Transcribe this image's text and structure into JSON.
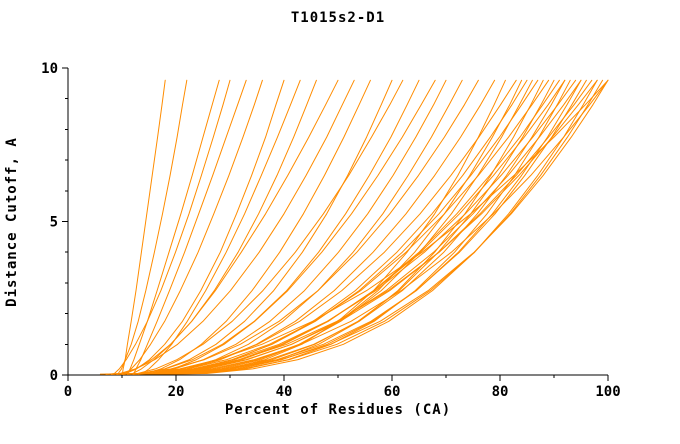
{
  "chart_data": {
    "type": "line",
    "title": "T1015s2-D1",
    "xlabel": "Percent of Residues (CA)",
    "ylabel": "Distance Cutoff, A",
    "xlim": [
      0,
      100
    ],
    "ylim": [
      0,
      10
    ],
    "x_ticks": [
      0,
      20,
      40,
      60,
      80,
      100
    ],
    "y_ticks": [
      0,
      5,
      10
    ],
    "x_minor_step": 10,
    "y_minor_step": 1,
    "grid": false,
    "legend": false,
    "line_color": "#ff8c00",
    "axis_color": "#000000",
    "background": "#ffffff",
    "y_samples": [
      0.03,
      0.05,
      0.2,
      0.5,
      1,
      1.75,
      2.75,
      4,
      5.25,
      6.5,
      7.75,
      8.8,
      9.6
    ],
    "series": [
      [
        10,
        10.1,
        10.2,
        10.6,
        11.0,
        11.7,
        12.6,
        13.6,
        14.6,
        15.6,
        16.6,
        17.4,
        18.0
      ],
      [
        9,
        9.3,
        9.9,
        10.6,
        11.7,
        13.0,
        14.4,
        16.0,
        17.5,
        18.9,
        20.2,
        21.2,
        22.0
      ],
      [
        11,
        11.1,
        11.5,
        12.2,
        13.2,
        14.7,
        16.5,
        18.7,
        20.9,
        23.0,
        25.0,
        26.7,
        28.0
      ],
      [
        8,
        8.6,
        9.5,
        10.8,
        12.5,
        14.7,
        17.2,
        19.9,
        22.4,
        24.7,
        26.9,
        28.7,
        30.0
      ],
      [
        12,
        12.2,
        12.6,
        13.5,
        14.7,
        16.5,
        18.8,
        21.6,
        24.2,
        26.8,
        29.3,
        31.4,
        33.0
      ],
      [
        10,
        10.7,
        11.7,
        13.3,
        15.3,
        17.9,
        20.8,
        24.1,
        27.0,
        29.8,
        32.4,
        34.5,
        36.0
      ],
      [
        9,
        10.7,
        12.7,
        15.1,
        17.9,
        21.2,
        24.6,
        28.2,
        31.2,
        34.0,
        36.6,
        38.5,
        40.0
      ],
      [
        13,
        13.8,
        15.0,
        16.8,
        19.2,
        22.1,
        25.5,
        29.3,
        32.7,
        35.8,
        38.8,
        41.2,
        43.0
      ],
      [
        8,
        10.1,
        12.5,
        15.5,
        19.0,
        22.9,
        27.1,
        31.5,
        35.3,
        38.7,
        41.8,
        44.2,
        46.0
      ],
      [
        11,
        12.0,
        13.6,
        15.9,
        19.0,
        22.9,
        27.3,
        32.1,
        36.6,
        40.7,
        44.6,
        47.7,
        50.0
      ],
      [
        7,
        9.6,
        12.5,
        16.1,
        20.3,
        25.0,
        30.1,
        35.4,
        40.0,
        44.1,
        47.9,
        50.8,
        53.0
      ],
      [
        12,
        14.4,
        17.2,
        20.7,
        24.7,
        29.3,
        34.1,
        39.2,
        43.6,
        47.5,
        51.1,
        53.9,
        56.0
      ],
      [
        9,
        13.8,
        17.9,
        22.5,
        27.4,
        32.7,
        38.1,
        43.4,
        47.9,
        51.8,
        55.3,
        58.0,
        60.0
      ],
      [
        10,
        12.9,
        16.2,
        20.2,
        25.0,
        30.4,
        36.1,
        42.1,
        47.3,
        52.0,
        56.2,
        59.6,
        62.0
      ],
      [
        8,
        13.3,
        18.0,
        23.1,
        28.6,
        34.5,
        40.5,
        46.4,
        51.4,
        55.8,
        59.8,
        62.8,
        65.0
      ],
      [
        13,
        16.1,
        19.5,
        23.8,
        28.9,
        34.6,
        40.7,
        47.0,
        52.5,
        57.4,
        61.9,
        65.4,
        68.0
      ],
      [
        9,
        14.7,
        19.7,
        25.1,
        31.1,
        37.4,
        43.8,
        50.1,
        55.5,
        60.2,
        64.4,
        67.7,
        70.0
      ],
      [
        11,
        16.8,
        21.9,
        27.4,
        33.4,
        39.8,
        46.3,
        52.8,
        58.3,
        63.0,
        67.3,
        70.6,
        73.0
      ],
      [
        7,
        13.5,
        19.1,
        25.3,
        31.9,
        39.1,
        46.3,
        53.5,
        59.6,
        64.9,
        69.7,
        73.4,
        76.0
      ],
      [
        10,
        16.5,
        22.1,
        28.3,
        34.9,
        42.1,
        49.3,
        56.5,
        62.6,
        67.9,
        72.7,
        76.4,
        79.0
      ],
      [
        12,
        23.0,
        29.8,
        36.5,
        43.3,
        50.0,
        56.6,
        62.8,
        67.9,
        72.2,
        76.0,
        78.9,
        81.0
      ],
      [
        8,
        15.0,
        21.1,
        27.8,
        35.1,
        42.9,
        50.7,
        58.6,
        65.2,
        70.9,
        76.1,
        80.1,
        83.0
      ],
      [
        9,
        20.9,
        28.3,
        35.7,
        43.0,
        50.3,
        57.4,
        64.2,
        69.7,
        74.4,
        78.6,
        81.8,
        84.0
      ],
      [
        11,
        17.9,
        24.0,
        30.6,
        37.7,
        45.4,
        53.2,
        60.9,
        67.4,
        73.1,
        78.2,
        82.2,
        85.0
      ],
      [
        7,
        19.5,
        27.4,
        35.1,
        42.8,
        50.5,
        58.0,
        65.2,
        71.0,
        75.9,
        80.3,
        83.6,
        86.0
      ],
      [
        10,
        17.2,
        23.5,
        30.4,
        37.8,
        45.8,
        53.9,
        61.9,
        68.7,
        74.6,
        79.9,
        84.0,
        87.0
      ],
      [
        12,
        24.1,
        31.6,
        39.0,
        46.4,
        53.9,
        61.1,
        67.9,
        73.5,
        78.3,
        82.5,
        85.7,
        88.0
      ],
      [
        8,
        15.6,
        22.2,
        29.4,
        37.3,
        45.7,
        54.2,
        62.6,
        69.7,
        76.0,
        81.6,
        85.9,
        89.0
      ],
      [
        9,
        21.9,
        29.9,
        37.8,
        45.7,
        53.7,
        61.3,
        68.6,
        74.6,
        79.7,
        84.2,
        87.6,
        90.0
      ],
      [
        11,
        18.5,
        25.0,
        32.2,
        39.9,
        48.2,
        56.6,
        65.0,
        72.0,
        78.1,
        83.7,
        87.9,
        91.0
      ],
      [
        7,
        20.5,
        28.9,
        37.2,
        45.5,
        53.9,
        61.9,
        69.6,
        75.8,
        81.2,
        85.9,
        89.5,
        92.0
      ],
      [
        10,
        17.7,
        24.4,
        31.7,
        39.6,
        48.1,
        56.7,
        65.3,
        72.5,
        78.8,
        84.5,
        88.9,
        92.0
      ],
      [
        12,
        24.9,
        32.9,
        40.8,
        48.7,
        56.7,
        64.3,
        71.6,
        77.6,
        82.7,
        87.2,
        90.6,
        93.0
      ],
      [
        8,
        16.1,
        23.1,
        30.8,
        39.1,
        48.0,
        57.0,
        66.0,
        73.6,
        80.2,
        86.1,
        90.7,
        94.0
      ],
      [
        9,
        22.7,
        31.2,
        39.6,
        48.0,
        56.4,
        64.5,
        72.3,
        78.6,
        84.0,
        88.8,
        92.4,
        95.0
      ],
      [
        11,
        18.9,
        25.7,
        33.2,
        41.4,
        50.0,
        58.9,
        67.7,
        75.0,
        81.5,
        87.3,
        91.8,
        95.0
      ],
      [
        7,
        21.1,
        30.0,
        38.7,
        47.3,
        56.1,
        64.5,
        72.5,
        79.1,
        84.6,
        89.6,
        93.3,
        96.0
      ],
      [
        10,
        18.2,
        25.2,
        33.0,
        41.4,
        50.4,
        59.6,
        68.7,
        76.3,
        83.0,
        89.0,
        93.7,
        97.0
      ],
      [
        12,
        25.7,
        34.2,
        42.6,
        51.0,
        59.4,
        67.5,
        75.3,
        81.6,
        87.0,
        91.8,
        95.4,
        98.0
      ],
      [
        8,
        16.4,
        23.8,
        31.8,
        40.5,
        49.8,
        59.3,
        68.7,
        76.6,
        83.5,
        89.7,
        94.5,
        98.0
      ],
      [
        9,
        23.3,
        32.2,
        41.0,
        49.8,
        58.6,
        67.1,
        75.3,
        81.9,
        87.5,
        92.5,
        96.3,
        99.0
      ],
      [
        11,
        19.4,
        26.6,
        34.5,
        43.2,
        52.4,
        61.7,
        71.0,
        78.8,
        85.7,
        91.8,
        96.6,
        100.0
      ],
      [
        6,
        20.9,
        30.2,
        39.4,
        48.6,
        57.8,
        66.7,
        75.2,
        82.1,
        88.0,
        93.2,
        97.2,
        100.0
      ],
      [
        10,
        15.0,
        20.7,
        27.7,
        35.9,
        45.3,
        55.3,
        65.6,
        74.6,
        82.6,
        90.0,
        95.8,
        100.0
      ]
    ]
  }
}
